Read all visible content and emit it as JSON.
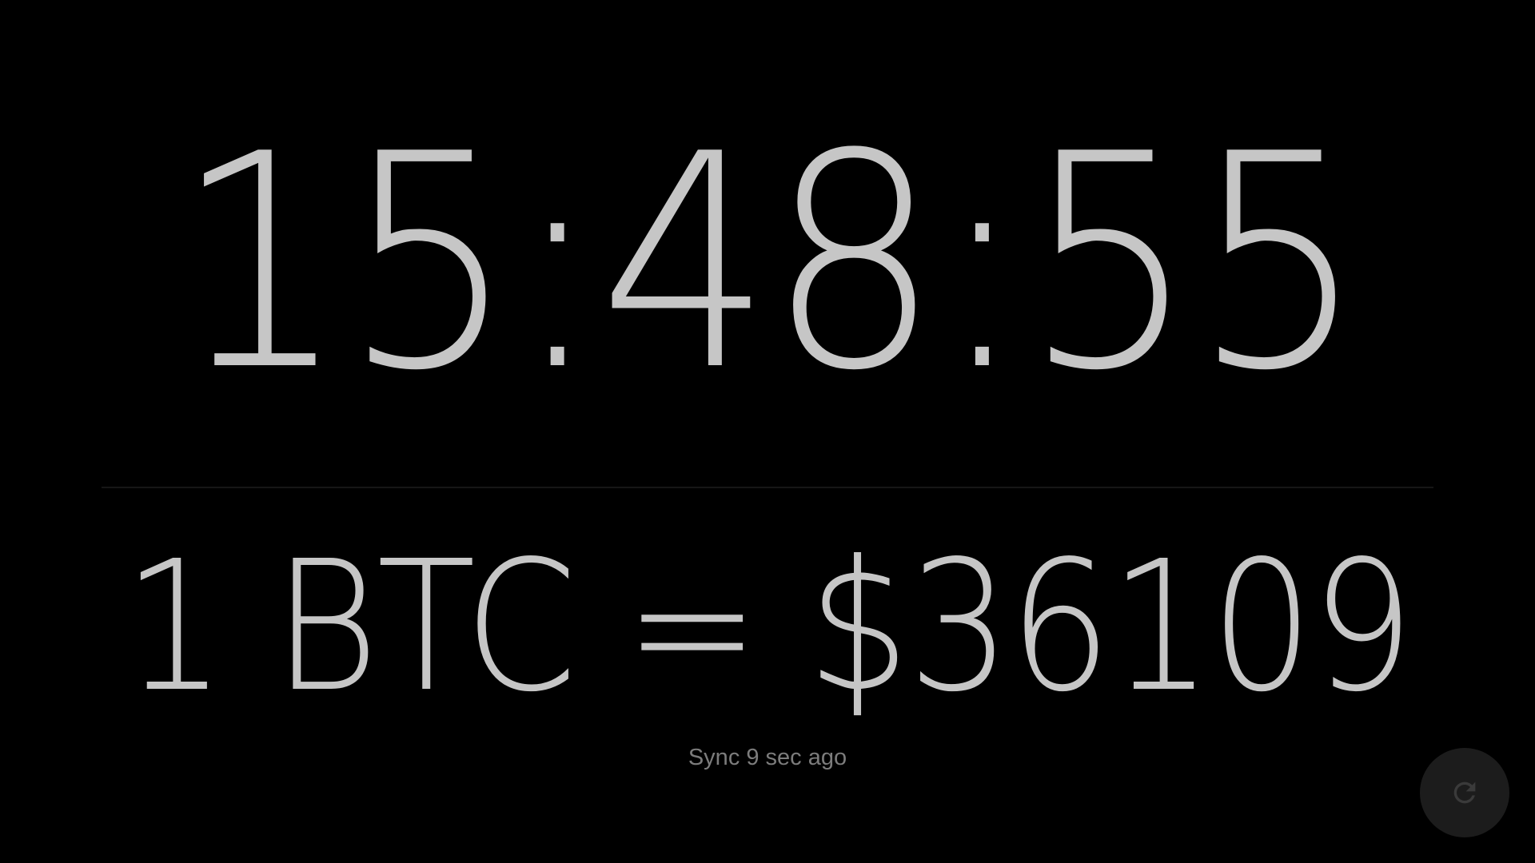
{
  "clock": {
    "time": "15:48:55"
  },
  "price": {
    "text": "1 BTC = $36109"
  },
  "status": {
    "sync_text": "Sync 9 sec ago"
  },
  "refresh": {
    "icon": "refresh-icon",
    "background_color": "#1c1c1c",
    "icon_color": "#3a3a3a"
  },
  "colors": {
    "background": "#000000",
    "primary_text": "#c6c6c6",
    "secondary_text": "#7c7c7c",
    "divider": "#161616"
  }
}
